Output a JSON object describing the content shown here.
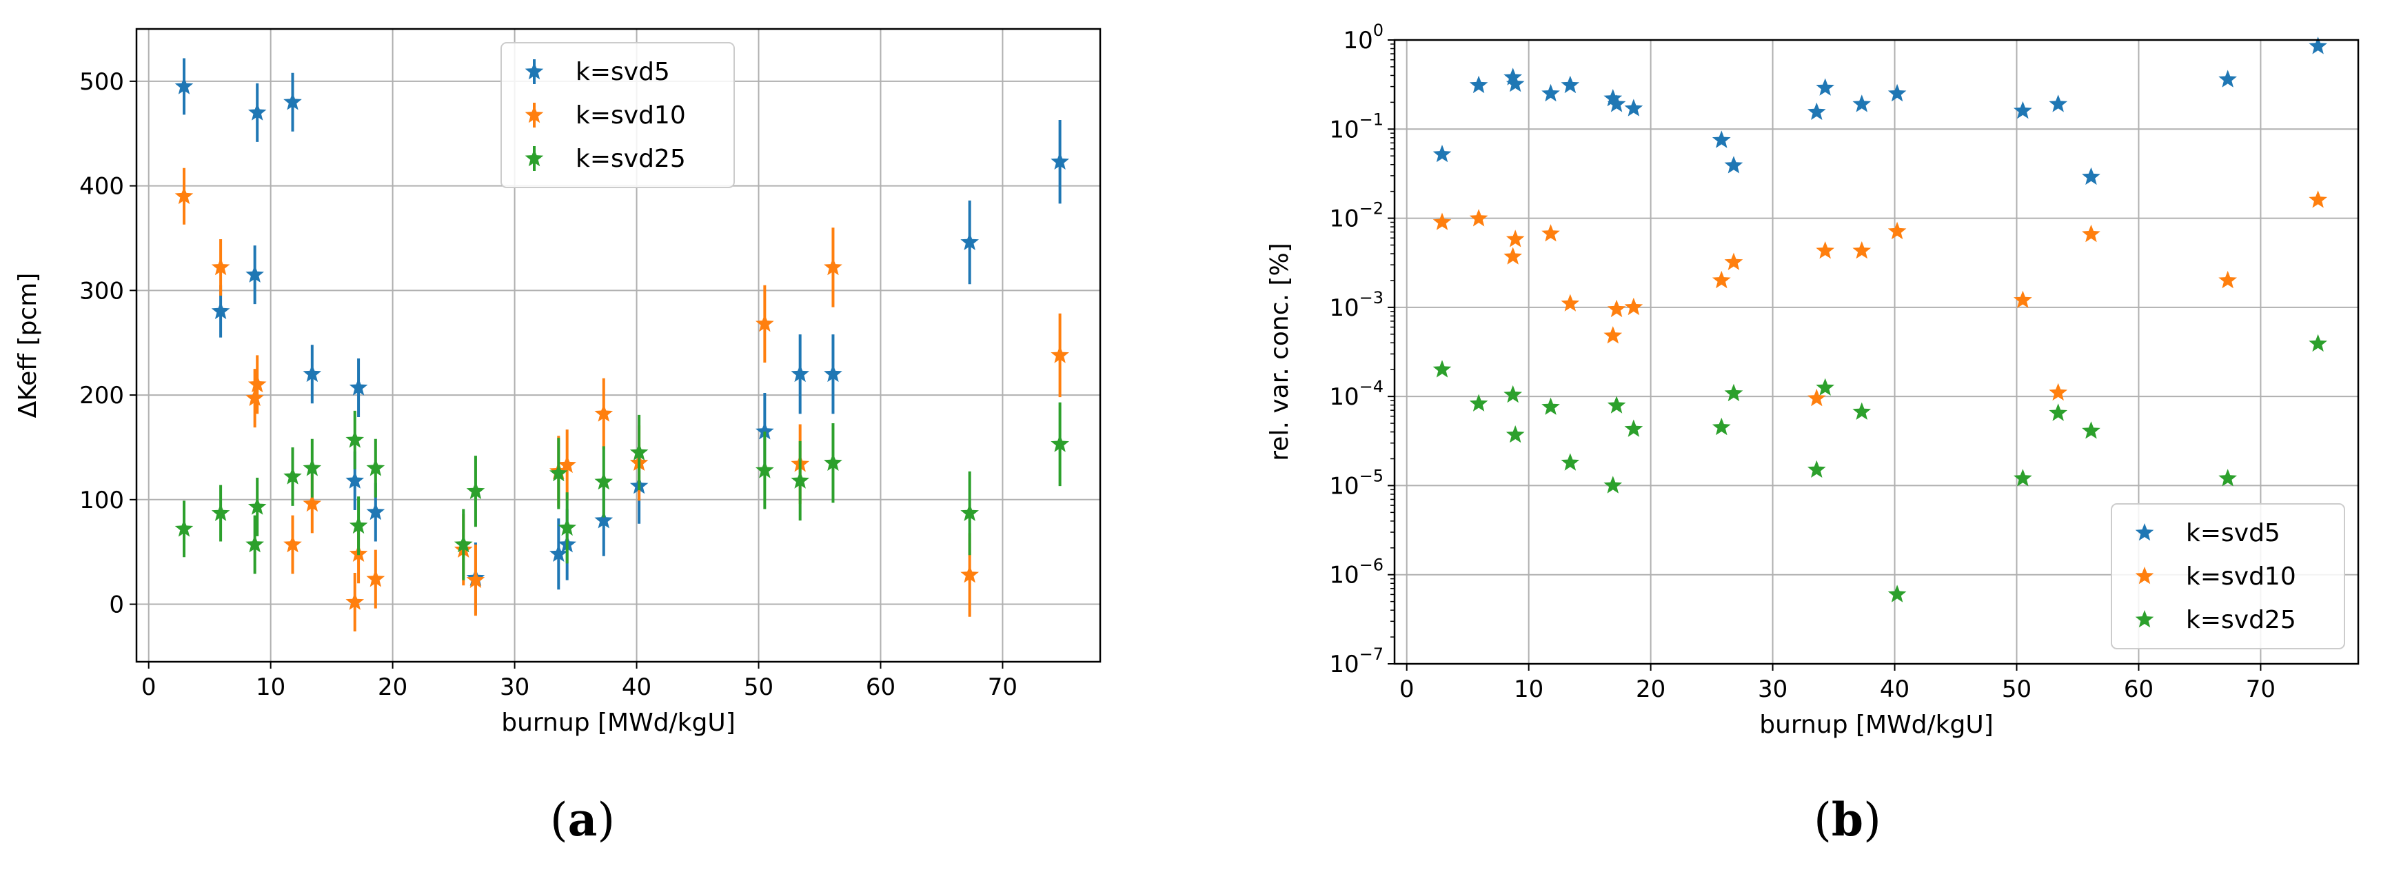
{
  "colors": {
    "svd5": "#1f77b4",
    "svd10": "#ff7f0e",
    "svd25": "#2ca02c"
  },
  "chart_data": [
    {
      "type": "scatter",
      "caption": "(a)",
      "xlabel": "burnup [MWd/kgU]",
      "ylabel": "ΔKeff [pcm]",
      "xlim": [
        -1,
        78
      ],
      "ylim": [
        -55,
        550
      ],
      "yscale": "linear",
      "xticks": [
        0,
        10,
        20,
        30,
        40,
        50,
        60,
        70
      ],
      "yticks": [
        0,
        100,
        200,
        300,
        400,
        500
      ],
      "grid": true,
      "legend_position": "top-center",
      "series": [
        {
          "name": "k=svd5",
          "color": "#1f77b4",
          "x": [
            2.9,
            5.9,
            8.7,
            8.9,
            11.8,
            13.4,
            16.9,
            17.2,
            18.6,
            26.8,
            33.6,
            34.3,
            37.3,
            40.2,
            50.5,
            53.4,
            56.1,
            67.3,
            74.7
          ],
          "y": [
            495,
            280,
            315,
            470,
            480,
            220,
            118,
            207,
            88,
            25,
            48,
            57,
            80,
            113,
            165,
            220,
            220,
            346,
            423
          ],
          "yerr": [
            27,
            25,
            28,
            28,
            28,
            28,
            28,
            28,
            28,
            34,
            34,
            34,
            34,
            36,
            37,
            38,
            38,
            40,
            40
          ]
        },
        {
          "name": "k=svd10",
          "color": "#ff7f0e",
          "x": [
            2.9,
            5.9,
            8.7,
            8.9,
            11.8,
            13.4,
            16.9,
            17.2,
            18.6,
            25.8,
            26.8,
            33.6,
            34.3,
            37.3,
            40.2,
            50.5,
            53.4,
            56.1,
            67.3,
            74.7
          ],
          "y": [
            390,
            322,
            197,
            210,
            57,
            96,
            2,
            48,
            24,
            52,
            23,
            127,
            133,
            182,
            135,
            268,
            134,
            322,
            28,
            238
          ],
          "yerr": [
            27,
            27,
            28,
            28,
            28,
            28,
            28,
            28,
            28,
            34,
            34,
            34,
            34,
            34,
            36,
            37,
            38,
            38,
            40,
            40
          ]
        },
        {
          "name": "k=svd25",
          "color": "#2ca02c",
          "x": [
            2.9,
            5.9,
            8.7,
            8.9,
            11.8,
            13.4,
            16.9,
            17.2,
            18.6,
            25.8,
            26.8,
            33.6,
            34.3,
            37.3,
            40.2,
            50.5,
            53.4,
            56.1,
            67.3,
            74.7
          ],
          "y": [
            72,
            87,
            57,
            93,
            122,
            130,
            157,
            75,
            130,
            57,
            108,
            125,
            73,
            117,
            145,
            128,
            118,
            135,
            87,
            153
          ],
          "yerr": [
            27,
            27,
            28,
            28,
            28,
            28,
            28,
            28,
            28,
            34,
            34,
            34,
            34,
            34,
            36,
            37,
            38,
            38,
            40,
            40
          ]
        }
      ]
    },
    {
      "type": "scatter",
      "caption": "(b)",
      "xlabel": "burnup [MWd/kgU]",
      "ylabel": "rel. var. conc. [%]",
      "xlim": [
        -1,
        78
      ],
      "ylim": [
        1e-07,
        1
      ],
      "yscale": "log",
      "xticks": [
        0,
        10,
        20,
        30,
        40,
        50,
        60,
        70
      ],
      "yticks_exponents": [
        -7,
        -6,
        -5,
        -4,
        -3,
        -2,
        -1,
        0
      ],
      "tick_base": "10",
      "grid": true,
      "legend_position": "bottom-right",
      "series": [
        {
          "name": "k=svd5",
          "color": "#1f77b4",
          "x": [
            2.9,
            5.9,
            8.7,
            8.9,
            11.8,
            13.4,
            16.9,
            17.2,
            18.6,
            25.8,
            26.8,
            33.6,
            34.3,
            37.3,
            40.2,
            50.5,
            53.4,
            56.1,
            67.3,
            74.7
          ],
          "y": [
            0.052,
            0.31,
            0.38,
            0.32,
            0.25,
            0.31,
            0.22,
            0.19,
            0.17,
            0.075,
            0.039,
            0.155,
            0.29,
            0.19,
            0.25,
            0.16,
            0.19,
            0.029,
            0.36,
            0.85
          ]
        },
        {
          "name": "k=svd10",
          "color": "#ff7f0e",
          "x": [
            2.9,
            5.9,
            8.7,
            8.9,
            11.8,
            13.4,
            16.9,
            17.2,
            18.6,
            25.8,
            26.8,
            33.6,
            34.3,
            37.3,
            40.2,
            50.5,
            53.4,
            56.1,
            67.3,
            74.7
          ],
          "y": [
            0.009,
            0.0099,
            0.0037,
            0.0058,
            0.0067,
            0.0011,
            0.00048,
            0.00095,
            0.001,
            0.002,
            0.0032,
            9.5e-05,
            0.0043,
            0.0043,
            0.0071,
            0.0012,
            0.00011,
            0.0066,
            0.002,
            0.016
          ]
        },
        {
          "name": "k=svd25",
          "color": "#2ca02c",
          "x": [
            2.9,
            5.9,
            8.7,
            8.9,
            11.8,
            13.4,
            16.9,
            17.2,
            18.6,
            25.8,
            26.8,
            33.6,
            34.3,
            37.3,
            40.2,
            50.5,
            53.4,
            56.1,
            67.3,
            74.7
          ],
          "y": [
            0.0002,
            8.3e-05,
            0.000104,
            3.7e-05,
            7.6e-05,
            1.8e-05,
            1e-05,
            7.9e-05,
            4.3e-05,
            4.5e-05,
            0.000108,
            1.5e-05,
            0.000125,
            6.7e-05,
            6e-07,
            1.2e-05,
            6.5e-05,
            4.1e-05,
            1.2e-05,
            0.00039
          ]
        }
      ]
    }
  ]
}
